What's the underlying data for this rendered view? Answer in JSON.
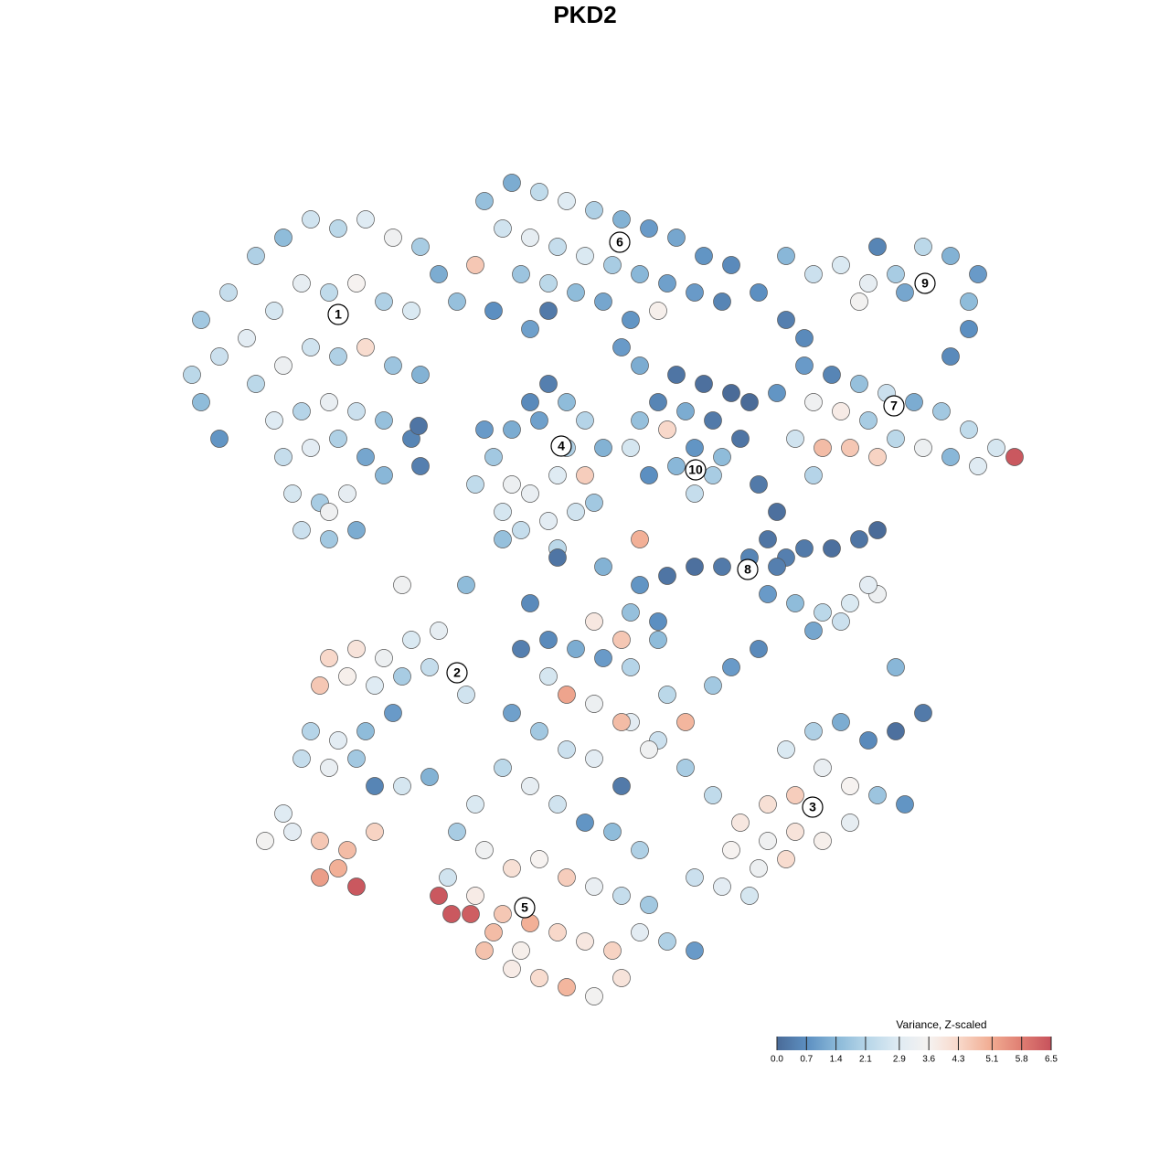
{
  "chart_data": {
    "type": "scatter",
    "title": "PKD2",
    "legend_title": "Variance, Z-scaled",
    "xlim": [
      0,
      128
    ],
    "ylim": [
      0,
      128
    ],
    "clim": [
      0,
      6.5
    ],
    "colorscale": [
      "#4a6b98",
      "#5d90c2",
      "#8cbad9",
      "#b9d7e9",
      "#dfebf3",
      "#f6f2f0",
      "#f8d7c8",
      "#f1ad93",
      "#e07f73",
      "#c7525c"
    ],
    "cticks": [
      {
        "value": 0,
        "label": "0.0"
      },
      0.7,
      1.4,
      2.1,
      2.9,
      3.6,
      4.3,
      5.1,
      5.8,
      6.5
    ],
    "marker_edge": "#555555",
    "points": [
      [
        22,
        93,
        1.8
      ],
      [
        25,
        96,
        2.4
      ],
      [
        28,
        100,
        2.0
      ],
      [
        31,
        102,
        1.5
      ],
      [
        34,
        104,
        2.6
      ],
      [
        37,
        103,
        2.2
      ],
      [
        40,
        104,
        2.9
      ],
      [
        43,
        102,
        3.4
      ],
      [
        46,
        101,
        1.9
      ],
      [
        48,
        98,
        1.2
      ],
      [
        50,
        95,
        1.6
      ],
      [
        24,
        89,
        2.5
      ],
      [
        27,
        91,
        3.0
      ],
      [
        30,
        94,
        2.7
      ],
      [
        33,
        97,
        3.1
      ],
      [
        36,
        96,
        2.3
      ],
      [
        39,
        97,
        3.6
      ],
      [
        42,
        95,
        2.0
      ],
      [
        45,
        94,
        2.8
      ],
      [
        28,
        86,
        2.2
      ],
      [
        31,
        88,
        3.3
      ],
      [
        34,
        90,
        2.6
      ],
      [
        37,
        89,
        2.0
      ],
      [
        40,
        90,
        4.2
      ],
      [
        43,
        88,
        1.7
      ],
      [
        46,
        87,
        1.3
      ],
      [
        30,
        82,
        2.9
      ],
      [
        33,
        83,
        2.1
      ],
      [
        36,
        84,
        3.2
      ],
      [
        39,
        83,
        2.5
      ],
      [
        42,
        82,
        1.6
      ],
      [
        31,
        78,
        2.4
      ],
      [
        34,
        79,
        3.0
      ],
      [
        37,
        80,
        2.0
      ],
      [
        40,
        78,
        1.1
      ],
      [
        32,
        74,
        2.7
      ],
      [
        35,
        73,
        1.9
      ],
      [
        38,
        74,
        3.1
      ],
      [
        33,
        70,
        2.5
      ],
      [
        36,
        69,
        1.8
      ],
      [
        39,
        70,
        1.2
      ],
      [
        22,
        84,
        1.5
      ],
      [
        21,
        87,
        2.2
      ],
      [
        24,
        80,
        0.8
      ],
      [
        45,
        80,
        0.5
      ],
      [
        42,
        76,
        1.4
      ],
      [
        46,
        77,
        0.4
      ],
      [
        36,
        72,
        3.4
      ],
      [
        45.8,
        81.4,
        0.2
      ],
      [
        53,
        106,
        1.6
      ],
      [
        56,
        108,
        1.2
      ],
      [
        59,
        107,
        2.3
      ],
      [
        62,
        106,
        2.9
      ],
      [
        65,
        105,
        2.0
      ],
      [
        68,
        104,
        1.3
      ],
      [
        71,
        103,
        0.9
      ],
      [
        74,
        102,
        1.1
      ],
      [
        77,
        100,
        0.8
      ],
      [
        80,
        99,
        0.6
      ],
      [
        83,
        96,
        0.7
      ],
      [
        55,
        103,
        2.6
      ],
      [
        58,
        102,
        3.1
      ],
      [
        61,
        101,
        2.4
      ],
      [
        64,
        100,
        2.8
      ],
      [
        67,
        99,
        1.9
      ],
      [
        70,
        98,
        1.4
      ],
      [
        73,
        97,
        1.0
      ],
      [
        76,
        96,
        0.9
      ],
      [
        79,
        95,
        0.5
      ],
      [
        86,
        93,
        0.4
      ],
      [
        88,
        91,
        0.6
      ],
      [
        57,
        98,
        1.7
      ],
      [
        60,
        97,
        2.2
      ],
      [
        63,
        96,
        1.5
      ],
      [
        66,
        95,
        1.1
      ],
      [
        69,
        93,
        0.8
      ],
      [
        72,
        94,
        3.7
      ],
      [
        52,
        99,
        4.6
      ],
      [
        54,
        94,
        0.7
      ],
      [
        58,
        92,
        1.0
      ],
      [
        68,
        90,
        0.9
      ],
      [
        70,
        88,
        1.2
      ],
      [
        60,
        94,
        0.3
      ],
      [
        52,
        75,
        2.3
      ],
      [
        54,
        78,
        1.8
      ],
      [
        56,
        81,
        1.2
      ],
      [
        58,
        84,
        0.6
      ],
      [
        60,
        86,
        0.4
      ],
      [
        62,
        84,
        1.5
      ],
      [
        64,
        82,
        2.1
      ],
      [
        66,
        79,
        1.3
      ],
      [
        55,
        72,
        2.7
      ],
      [
        58,
        74,
        3.2
      ],
      [
        61,
        76,
        2.9
      ],
      [
        64,
        76,
        4.5
      ],
      [
        57,
        70,
        2.4
      ],
      [
        60,
        71,
        3.0
      ],
      [
        63,
        72,
        2.6
      ],
      [
        59,
        82,
        1.0
      ],
      [
        53,
        81,
        0.9
      ],
      [
        56,
        75,
        3.3
      ],
      [
        62,
        79,
        2.0
      ],
      [
        65,
        73,
        1.8
      ],
      [
        61,
        68,
        2.2
      ],
      [
        55,
        69,
        1.6
      ],
      [
        74,
        87,
        0.2
      ],
      [
        77,
        86,
        0.1
      ],
      [
        80,
        85,
        0.0
      ],
      [
        72,
        84,
        0.5
      ],
      [
        75,
        83,
        1.2
      ],
      [
        78,
        82,
        0.3
      ],
      [
        81,
        80,
        0.2
      ],
      [
        70,
        82,
        1.6
      ],
      [
        73,
        81,
        4.3
      ],
      [
        76,
        79,
        0.8
      ],
      [
        79,
        78,
        1.5
      ],
      [
        83,
        75,
        0.3
      ],
      [
        85,
        72,
        0.1
      ],
      [
        84,
        69,
        0.2
      ],
      [
        86,
        67,
        0.4
      ],
      [
        76,
        74,
        2.4
      ],
      [
        78,
        76,
        1.9
      ],
      [
        74,
        77,
        1.4
      ],
      [
        69,
        79,
        2.7
      ],
      [
        71,
        76,
        0.7
      ],
      [
        82,
        84,
        0.0
      ],
      [
        88,
        88,
        0.9
      ],
      [
        91,
        87,
        0.5
      ],
      [
        94,
        86,
        1.6
      ],
      [
        97,
        85,
        2.5
      ],
      [
        100,
        84,
        1.2
      ],
      [
        103,
        83,
        1.8
      ],
      [
        106,
        81,
        2.3
      ],
      [
        109,
        79,
        2.7
      ],
      [
        111,
        78,
        6.4
      ],
      [
        89,
        84,
        3.4
      ],
      [
        92,
        83,
        3.8
      ],
      [
        95,
        82,
        1.9
      ],
      [
        98,
        80,
        2.2
      ],
      [
        101,
        79,
        3.3
      ],
      [
        104,
        78,
        1.4
      ],
      [
        107,
        77,
        2.9
      ],
      [
        87,
        80,
        2.6
      ],
      [
        90,
        79,
        4.8
      ],
      [
        93,
        79,
        4.6
      ],
      [
        96,
        78,
        4.4
      ],
      [
        89,
        76,
        2.1
      ],
      [
        85,
        85,
        0.8
      ],
      [
        89,
        98,
        2.5
      ],
      [
        92,
        99,
        2.8
      ],
      [
        95,
        97,
        3.1
      ],
      [
        98,
        98,
        1.9
      ],
      [
        101,
        101,
        2.2
      ],
      [
        104,
        100,
        1.3
      ],
      [
        107,
        98,
        0.9
      ],
      [
        106,
        95,
        1.5
      ],
      [
        106,
        92,
        0.7
      ],
      [
        104,
        89,
        0.6
      ],
      [
        96,
        101,
        0.5
      ],
      [
        94,
        95,
        3.5
      ],
      [
        99,
        96,
        1.1
      ],
      [
        86,
        100,
        1.4
      ],
      [
        70,
        64,
        0.8
      ],
      [
        73,
        65,
        0.2
      ],
      [
        76,
        66,
        0.1
      ],
      [
        79,
        66,
        0.3
      ],
      [
        82,
        67,
        0.5
      ],
      [
        85,
        66,
        0.4
      ],
      [
        88,
        68,
        0.3
      ],
      [
        91,
        68,
        0.1
      ],
      [
        94,
        69,
        0.2
      ],
      [
        96,
        70,
        0.0
      ],
      [
        84,
        63,
        0.9
      ],
      [
        87,
        62,
        1.5
      ],
      [
        90,
        61,
        2.2
      ],
      [
        93,
        62,
        2.8
      ],
      [
        96,
        63,
        3.3
      ],
      [
        89,
        59,
        1.1
      ],
      [
        92,
        60,
        2.5
      ],
      [
        95,
        64,
        3.0
      ],
      [
        69,
        61,
        1.6
      ],
      [
        72,
        60,
        0.7
      ],
      [
        68,
        58,
        4.6
      ],
      [
        66,
        66,
        1.3
      ],
      [
        61,
        67,
        0.2
      ],
      [
        58,
        62,
        0.6
      ],
      [
        65,
        60,
        3.9
      ],
      [
        70,
        69,
        5.0
      ],
      [
        36,
        56,
        4.3
      ],
      [
        39,
        57,
        4.0
      ],
      [
        42,
        56,
        3.3
      ],
      [
        45,
        58,
        2.8
      ],
      [
        48,
        59,
        3.1
      ],
      [
        35,
        53,
        4.6
      ],
      [
        38,
        54,
        3.7
      ],
      [
        41,
        53,
        2.9
      ],
      [
        44,
        54,
        1.9
      ],
      [
        47,
        55,
        2.4
      ],
      [
        51,
        52,
        2.6
      ],
      [
        34,
        48,
        2.1
      ],
      [
        37,
        47,
        3.0
      ],
      [
        40,
        48,
        1.5
      ],
      [
        43,
        50,
        0.9
      ],
      [
        33,
        45,
        2.4
      ],
      [
        36,
        44,
        3.2
      ],
      [
        39,
        45,
        1.8
      ],
      [
        41,
        42,
        0.5
      ],
      [
        44,
        42,
        2.7
      ],
      [
        47,
        43,
        1.3
      ],
      [
        44,
        64,
        3.4
      ],
      [
        51,
        64,
        1.5
      ],
      [
        29,
        36,
        3.5
      ],
      [
        32,
        37,
        3.0
      ],
      [
        35,
        36,
        4.6
      ],
      [
        38,
        35,
        4.8
      ],
      [
        37,
        33,
        5.0
      ],
      [
        35,
        32,
        5.3
      ],
      [
        39,
        31,
        6.4
      ],
      [
        41,
        37,
        4.4
      ],
      [
        31,
        39,
        2.9
      ],
      [
        98,
        55,
        1.4
      ],
      [
        101,
        50,
        0.3
      ],
      [
        98,
        48,
        0.1
      ],
      [
        95,
        47,
        0.6
      ],
      [
        92,
        49,
        1.2
      ],
      [
        89,
        48,
        2.0
      ],
      [
        86,
        46,
        2.8
      ],
      [
        90,
        44,
        3.2
      ],
      [
        93,
        42,
        3.6
      ],
      [
        96,
        41,
        1.7
      ],
      [
        99,
        40,
        0.8
      ],
      [
        87,
        41,
        4.5
      ],
      [
        84,
        40,
        4.1
      ],
      [
        81,
        38,
        3.9
      ],
      [
        84,
        36,
        3.4
      ],
      [
        87,
        37,
        4.0
      ],
      [
        90,
        36,
        3.7
      ],
      [
        93,
        38,
        3.1
      ],
      [
        80,
        35,
        3.6
      ],
      [
        83,
        33,
        3.3
      ],
      [
        86,
        34,
        4.2
      ],
      [
        79,
        31,
        3.0
      ],
      [
        82,
        30,
        2.7
      ],
      [
        76,
        32,
        2.5
      ],
      [
        78,
        41,
        2.3
      ],
      [
        75,
        44,
        1.9
      ],
      [
        72,
        47,
        2.5
      ],
      [
        69,
        49,
        3.0
      ],
      [
        75,
        49,
        4.9
      ],
      [
        73,
        52,
        2.2
      ],
      [
        78,
        53,
        1.8
      ],
      [
        80,
        55,
        0.9
      ],
      [
        83,
        57,
        0.6
      ],
      [
        57,
        57,
        0.4
      ],
      [
        60,
        58,
        0.6
      ],
      [
        63,
        57,
        1.2
      ],
      [
        66,
        56,
        0.9
      ],
      [
        69,
        55,
        2.1
      ],
      [
        72,
        58,
        1.5
      ],
      [
        60,
        54,
        2.7
      ],
      [
        62,
        52,
        5.2
      ],
      [
        65,
        51,
        3.3
      ],
      [
        68,
        49,
        4.8
      ],
      [
        71,
        46,
        3.4
      ],
      [
        56,
        50,
        1.0
      ],
      [
        59,
        48,
        1.8
      ],
      [
        62,
        46,
        2.5
      ],
      [
        65,
        45,
        3.0
      ],
      [
        68,
        42,
        0.3
      ],
      [
        55,
        44,
        2.2
      ],
      [
        58,
        42,
        3.1
      ],
      [
        61,
        40,
        2.6
      ],
      [
        64,
        38,
        0.8
      ],
      [
        67,
        37,
        1.5
      ],
      [
        70,
        35,
        2.0
      ],
      [
        52,
        40,
        2.8
      ],
      [
        50,
        37,
        1.9
      ],
      [
        53,
        35,
        3.4
      ],
      [
        56,
        33,
        4.1
      ],
      [
        59,
        34,
        3.6
      ],
      [
        62,
        32,
        4.5
      ],
      [
        65,
        31,
        3.2
      ],
      [
        68,
        30,
        2.4
      ],
      [
        71,
        29,
        1.8
      ],
      [
        49,
        32,
        2.6
      ],
      [
        52,
        30,
        3.8
      ],
      [
        55,
        28,
        4.6
      ],
      [
        58,
        27,
        5.0
      ],
      [
        61,
        26,
        4.3
      ],
      [
        64,
        25,
        3.9
      ],
      [
        67,
        24,
        4.4
      ],
      [
        70,
        26,
        3.0
      ],
      [
        73,
        25,
        2.0
      ],
      [
        76,
        24,
        0.9
      ],
      [
        53,
        24,
        4.7
      ],
      [
        56,
        22,
        3.8
      ],
      [
        59,
        21,
        4.2
      ],
      [
        62,
        20,
        4.9
      ],
      [
        65,
        19,
        3.5
      ],
      [
        68,
        21,
        4.0
      ],
      [
        48,
        30,
        6.4
      ],
      [
        49.4,
        28,
        6.4
      ],
      [
        51.5,
        28,
        6.3
      ],
      [
        54,
        26,
        4.8
      ],
      [
        57,
        24,
        3.7
      ]
    ],
    "cluster_labels": [
      {
        "label": "1",
        "x": 37.0,
        "y": 93.6
      },
      {
        "label": "2",
        "x": 50.0,
        "y": 54.4
      },
      {
        "label": "3",
        "x": 88.9,
        "y": 39.7
      },
      {
        "label": "4",
        "x": 61.4,
        "y": 79.2
      },
      {
        "label": "5",
        "x": 57.4,
        "y": 28.7
      },
      {
        "label": "6",
        "x": 67.8,
        "y": 101.5
      },
      {
        "label": "7",
        "x": 97.8,
        "y": 83.6
      },
      {
        "label": "8",
        "x": 81.8,
        "y": 65.7
      },
      {
        "label": "9",
        "x": 101.2,
        "y": 97.0
      },
      {
        "label": "10",
        "x": 76.1,
        "y": 76.6
      }
    ]
  }
}
